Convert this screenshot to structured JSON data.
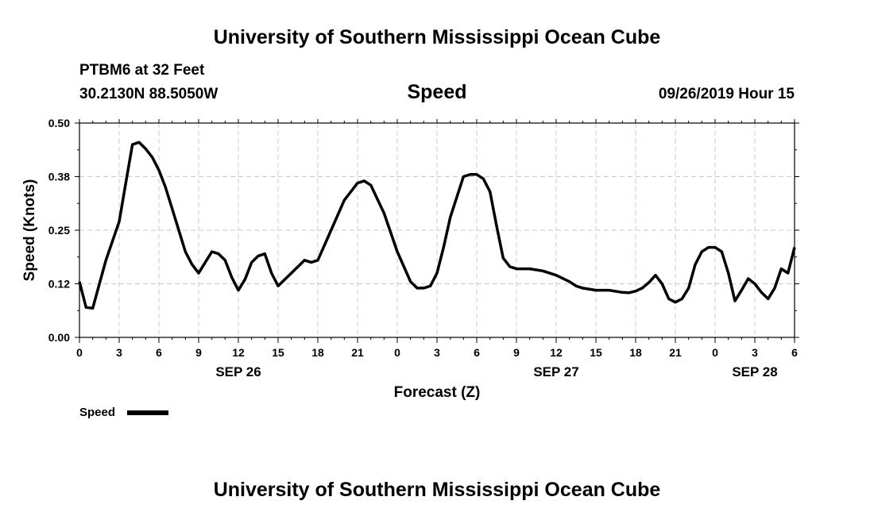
{
  "header": {
    "title": "University of Southern Mississippi Ocean Cube",
    "station": "PTBM6 at 32 Feet",
    "location": "30.2130N 88.5050W",
    "variable": "Speed",
    "issued": "09/26/2019 Hour 15"
  },
  "footer": {
    "title": "University of Southern Mississippi Ocean Cube"
  },
  "chart_data": {
    "type": "line",
    "title": "Speed",
    "xlabel": "Forecast (Z)",
    "ylabel": "Speed (Knots)",
    "xlim": [
      0,
      54
    ],
    "ylim": [
      0,
      0.5
    ],
    "grid": true,
    "legend_position": "bottom-left",
    "yticks": [
      "0.00",
      "0.12",
      "0.25",
      "0.38",
      "0.50"
    ],
    "xticks": [
      "0",
      "3",
      "6",
      "9",
      "12",
      "15",
      "18",
      "21",
      "0",
      "3",
      "6",
      "9",
      "12",
      "15",
      "18",
      "21",
      "0",
      "3",
      "6"
    ],
    "date_labels": [
      {
        "hour": 12,
        "label": "SEP 26"
      },
      {
        "hour": 36,
        "label": "SEP 27"
      },
      {
        "hour": 51,
        "label": "SEP 28"
      }
    ],
    "series": [
      {
        "name": "Speed",
        "color": "#000000",
        "x": [
          0,
          0.5,
          1,
          2,
          3,
          3.5,
          4,
          4.5,
          5,
          5.5,
          6,
          6.5,
          7,
          8,
          8.5,
          9,
          9.5,
          10,
          10.5,
          11,
          11.5,
          12,
          12.5,
          13,
          13.5,
          14,
          14.5,
          15,
          15.5,
          16,
          16.5,
          17,
          17.5,
          18,
          19,
          20,
          21,
          21.5,
          22,
          23,
          24,
          25,
          25.5,
          26,
          26.5,
          27,
          27.5,
          28,
          29,
          29.5,
          30,
          30.5,
          31,
          31.5,
          32,
          32.5,
          33,
          33.5,
          34,
          35,
          36,
          37,
          37.5,
          38,
          39,
          40,
          41,
          41.5,
          42,
          42.5,
          43,
          43.5,
          44,
          44.5,
          45,
          45.5,
          46,
          46.5,
          47,
          47.5,
          48,
          48.5,
          49,
          49.5,
          50,
          50.5,
          51,
          51.5,
          52,
          52.5,
          53,
          53.5,
          54
        ],
        "y": [
          0.13,
          0.07,
          0.068,
          0.18,
          0.27,
          0.36,
          0.45,
          0.455,
          0.44,
          0.42,
          0.39,
          0.35,
          0.3,
          0.2,
          0.17,
          0.15,
          0.175,
          0.2,
          0.195,
          0.18,
          0.14,
          0.11,
          0.135,
          0.175,
          0.19,
          0.195,
          0.15,
          0.12,
          0.135,
          0.15,
          0.165,
          0.18,
          0.175,
          0.18,
          0.25,
          0.32,
          0.36,
          0.365,
          0.355,
          0.29,
          0.2,
          0.13,
          0.115,
          0.115,
          0.12,
          0.15,
          0.21,
          0.28,
          0.375,
          0.38,
          0.38,
          0.37,
          0.34,
          0.26,
          0.185,
          0.165,
          0.16,
          0.16,
          0.16,
          0.155,
          0.145,
          0.13,
          0.12,
          0.115,
          0.11,
          0.11,
          0.105,
          0.104,
          0.108,
          0.115,
          0.128,
          0.145,
          0.125,
          0.09,
          0.082,
          0.09,
          0.115,
          0.17,
          0.2,
          0.21,
          0.21,
          0.2,
          0.15,
          0.085,
          0.11,
          0.137,
          0.125,
          0.105,
          0.09,
          0.115,
          0.16,
          0.15,
          0.21
        ]
      }
    ]
  }
}
